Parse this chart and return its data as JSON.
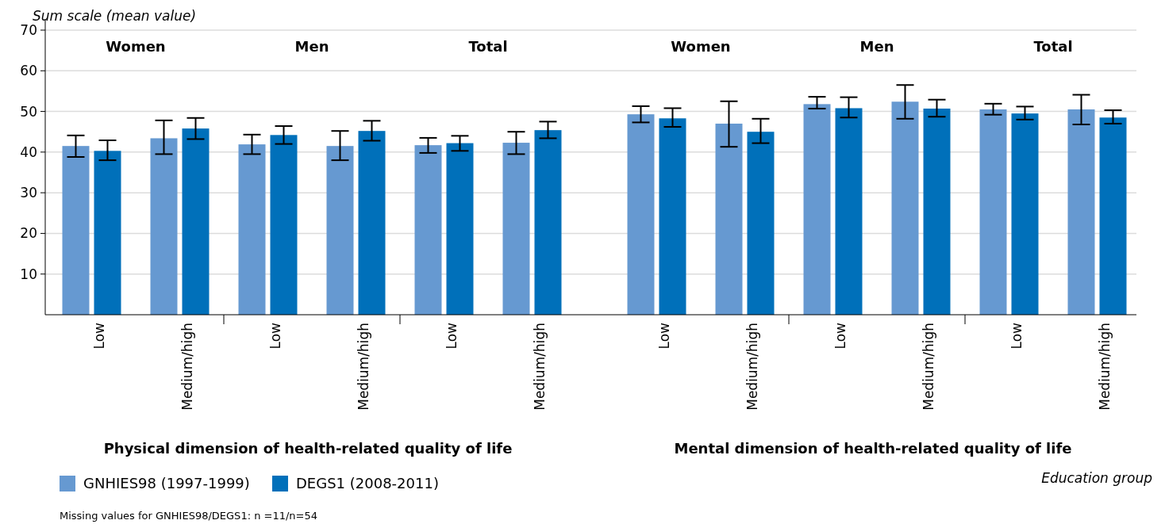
{
  "chart_data": [
    {
      "type": "bar",
      "categories": [
        "Low",
        "Medium/high",
        "Low",
        "Medium/high",
        "Low",
        "Medium/high"
      ],
      "xlabel": "Physical dimension of health-related quality of life",
      "ylabel": "Sum scale (mean value)",
      "ylim": [
        0,
        70
      ],
      "yticks": [
        10,
        20,
        30,
        40,
        50,
        60,
        70
      ],
      "grid": "y",
      "legend": "bottom left",
      "series": [
        {
          "name": "GNHIES98 (1997-1999)",
          "color": "#6699d1",
          "values": [
            41.5,
            43.4,
            41.9,
            41.5,
            41.7,
            42.3
          ],
          "errors": [
            [
              38.8,
              44.1
            ],
            [
              39.5,
              47.8
            ],
            [
              39.5,
              44.3
            ],
            [
              38.0,
              45.2
            ],
            [
              39.8,
              43.5
            ],
            [
              39.5,
              45.0
            ]
          ]
        },
        {
          "name": "DEGS1 (2008-2011)",
          "color": "#0070ba",
          "values": [
            40.3,
            45.8,
            44.2,
            45.2,
            42.2,
            45.4
          ],
          "errors": [
            [
              38.0,
              42.9
            ],
            [
              43.2,
              48.4
            ],
            [
              42.0,
              46.4
            ],
            [
              42.8,
              47.7
            ],
            [
              40.3,
              44.0
            ],
            [
              43.4,
              47.5
            ]
          ]
        }
      ],
      "annotations": [
        "Women",
        "Men",
        "Total",
        "Missing values for GNHIES98/DEGS1: n =11/n=54"
      ]
    },
    {
      "type": "bar",
      "categories": [
        "Low",
        "Medium/high",
        "Low",
        "Medium/high",
        "Low",
        "Medium/high"
      ],
      "xlabel": "Mental dimension of health-related quality of life",
      "ylim": [
        0,
        70
      ],
      "yticks": [
        10,
        20,
        30,
        40,
        50,
        60,
        70
      ],
      "grid": "y",
      "tick_labels": "x",
      "series": [
        {
          "color": "#6699d1",
          "values": [
            49.3,
            47.0,
            51.8,
            52.4,
            50.5,
            50.5
          ],
          "errors": [
            [
              47.3,
              51.3
            ],
            [
              41.3,
              52.5
            ],
            [
              50.7,
              53.6
            ],
            [
              48.2,
              56.5
            ],
            [
              49.2,
              51.9
            ],
            [
              46.8,
              54.1
            ]
          ]
        },
        {
          "color": "#0070ba",
          "values": [
            48.3,
            45.0,
            50.8,
            50.7,
            49.5,
            48.5
          ],
          "errors": [
            [
              46.2,
              50.8
            ],
            [
              42.2,
              48.2
            ],
            [
              48.5,
              53.5
            ],
            [
              48.7,
              52.9
            ],
            [
              48.0,
              51.2
            ],
            [
              47.0,
              50.3
            ]
          ]
        }
      ],
      "annotations": [
        "Women",
        "Men",
        "Total",
        "Education group"
      ]
    }
  ]
}
